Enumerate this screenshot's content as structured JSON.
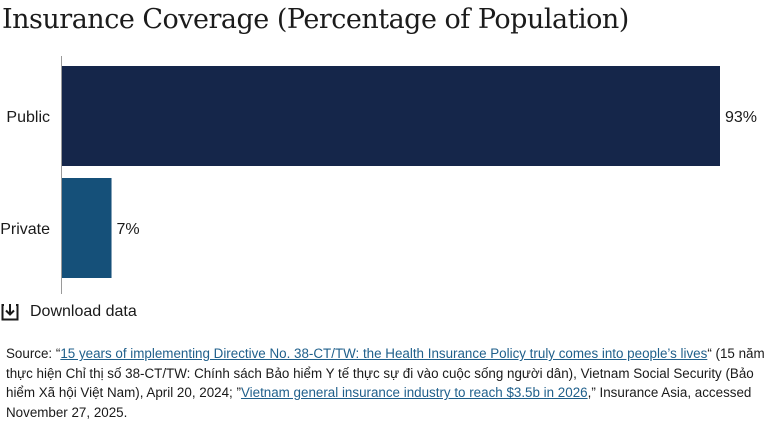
{
  "chart_data": {
    "type": "bar",
    "orientation": "horizontal",
    "title": "Insurance Coverage (Percentage of Population)",
    "categories": [
      "Public",
      "Private"
    ],
    "values": [
      93,
      7
    ],
    "value_labels": [
      "93%",
      "7%"
    ],
    "bar_colors": [
      "#15264a",
      "#155079"
    ],
    "xlim": [
      0,
      93
    ],
    "grid": false
  },
  "download": {
    "label": "Download data",
    "icon": "download-icon"
  },
  "source": {
    "prefix": "Source: “",
    "link1": "15 years of implementing Directive No. 38-CT/TW: the Health Insurance Policy truly comes into people’s lives",
    "mid1": "“ (15 năm thực hiện Chỉ thị số 38-CT/TW: Chính sách Bảo hiểm Y tế thực sự đi vào cuộc sống người dân), Vietnam Social Security (Bảo hiểm Xã hội Việt Nam), April 20, 2024; ”",
    "link2": "Vietnam general insurance industry to reach $3.5b in 2026",
    "suffix": ",” Insurance Asia, accessed November 27, 2025."
  }
}
